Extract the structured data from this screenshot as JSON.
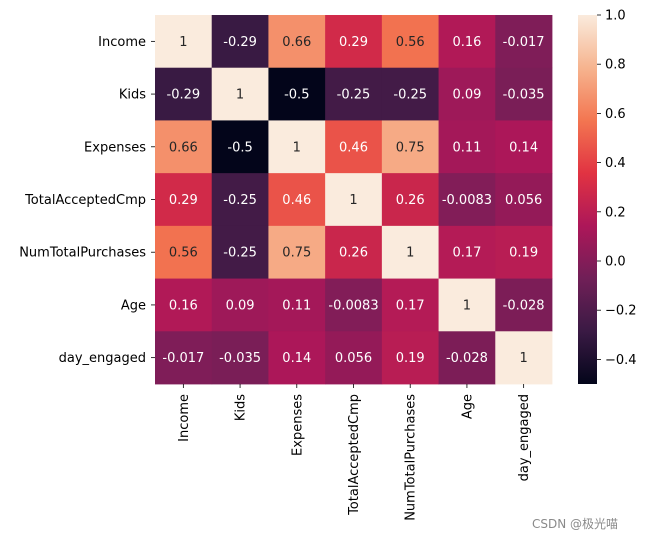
{
  "chart_data": {
    "type": "heatmap",
    "title": "",
    "xlabel": "",
    "ylabel": "",
    "rows": [
      "Income",
      "Kids",
      "Expenses",
      "TotalAcceptedCmp",
      "NumTotalPurchases",
      "Age",
      "day_engaged"
    ],
    "columns": [
      "Income",
      "Kids",
      "Expenses",
      "TotalAcceptedCmp",
      "NumTotalPurchases",
      "Age",
      "day_engaged"
    ],
    "values": [
      [
        1,
        -0.29,
        0.66,
        0.29,
        0.56,
        0.16,
        -0.017
      ],
      [
        -0.29,
        1,
        -0.5,
        -0.25,
        -0.25,
        0.09,
        -0.035
      ],
      [
        0.66,
        -0.5,
        1,
        0.46,
        0.75,
        0.11,
        0.14
      ],
      [
        0.29,
        -0.25,
        0.46,
        1,
        0.26,
        -0.0083,
        0.056
      ],
      [
        0.56,
        -0.25,
        0.75,
        0.26,
        1,
        0.17,
        0.19
      ],
      [
        0.16,
        0.09,
        0.11,
        -0.0083,
        0.17,
        1,
        -0.028
      ],
      [
        -0.017,
        -0.035,
        0.14,
        0.056,
        0.19,
        -0.028,
        1
      ]
    ],
    "labels": [
      [
        "1",
        "-0.29",
        "0.66",
        "0.29",
        "0.56",
        "0.16",
        "-0.017"
      ],
      [
        "-0.29",
        "1",
        "-0.5",
        "-0.25",
        "-0.25",
        "0.09",
        "-0.035"
      ],
      [
        "0.66",
        "-0.5",
        "1",
        "0.46",
        "0.75",
        "0.11",
        "0.14"
      ],
      [
        "0.29",
        "-0.25",
        "0.46",
        "1",
        "0.26",
        "-0.0083",
        "0.056"
      ],
      [
        "0.56",
        "-0.25",
        "0.75",
        "0.26",
        "1",
        "0.17",
        "0.19"
      ],
      [
        "0.16",
        "0.09",
        "0.11",
        "-0.0083",
        "0.17",
        "1",
        "-0.028"
      ],
      [
        "-0.017",
        "-0.035",
        "0.14",
        "0.056",
        "0.19",
        "-0.028",
        "1"
      ]
    ],
    "colorbar": {
      "vmin": -0.5,
      "vmax": 1.0,
      "ticks": [
        1.0,
        0.8,
        0.6,
        0.4,
        0.2,
        0.0,
        -0.2,
        -0.4
      ],
      "tick_labels": [
        "1.0",
        "0.8",
        "0.6",
        "0.4",
        "0.2",
        "0.0",
        "−0.2",
        "−0.4"
      ],
      "colormap": "rocket",
      "color_stops": [
        "#03051a",
        "#3a1a44",
        "#701f57",
        "#ad1759",
        "#e13342",
        "#f37651",
        "#f6b48f",
        "#faebdd"
      ]
    }
  },
  "watermark": "CSDN @极光喵"
}
